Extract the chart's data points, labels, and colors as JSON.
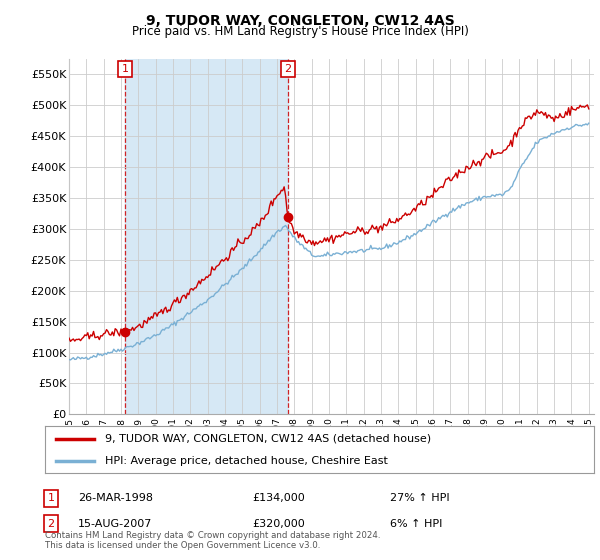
{
  "title": "9, TUDOR WAY, CONGLETON, CW12 4AS",
  "subtitle": "Price paid vs. HM Land Registry's House Price Index (HPI)",
  "ylim": [
    0,
    575000
  ],
  "yticks": [
    0,
    50000,
    100000,
    150000,
    200000,
    250000,
    300000,
    350000,
    400000,
    450000,
    500000,
    550000
  ],
  "ytick_labels": [
    "£0",
    "£50K",
    "£100K",
    "£150K",
    "£200K",
    "£250K",
    "£300K",
    "£350K",
    "£400K",
    "£450K",
    "£500K",
    "£550K"
  ],
  "line1_color": "#cc0000",
  "line2_color": "#7ab0d4",
  "shade_color": "#d6e8f5",
  "legend_line1": "9, TUDOR WAY, CONGLETON, CW12 4AS (detached house)",
  "legend_line2": "HPI: Average price, detached house, Cheshire East",
  "point1_date": "26-MAR-1998",
  "point1_price": 134000,
  "point1_hpi": "27% ↑ HPI",
  "point2_date": "15-AUG-2007",
  "point2_price": 320000,
  "point2_hpi": "6% ↑ HPI",
  "footer": "Contains HM Land Registry data © Crown copyright and database right 2024.\nThis data is licensed under the Open Government Licence v3.0.",
  "background_color": "#ffffff",
  "grid_color": "#cccccc",
  "xlim_left": 1995.0,
  "xlim_right": 2025.3
}
